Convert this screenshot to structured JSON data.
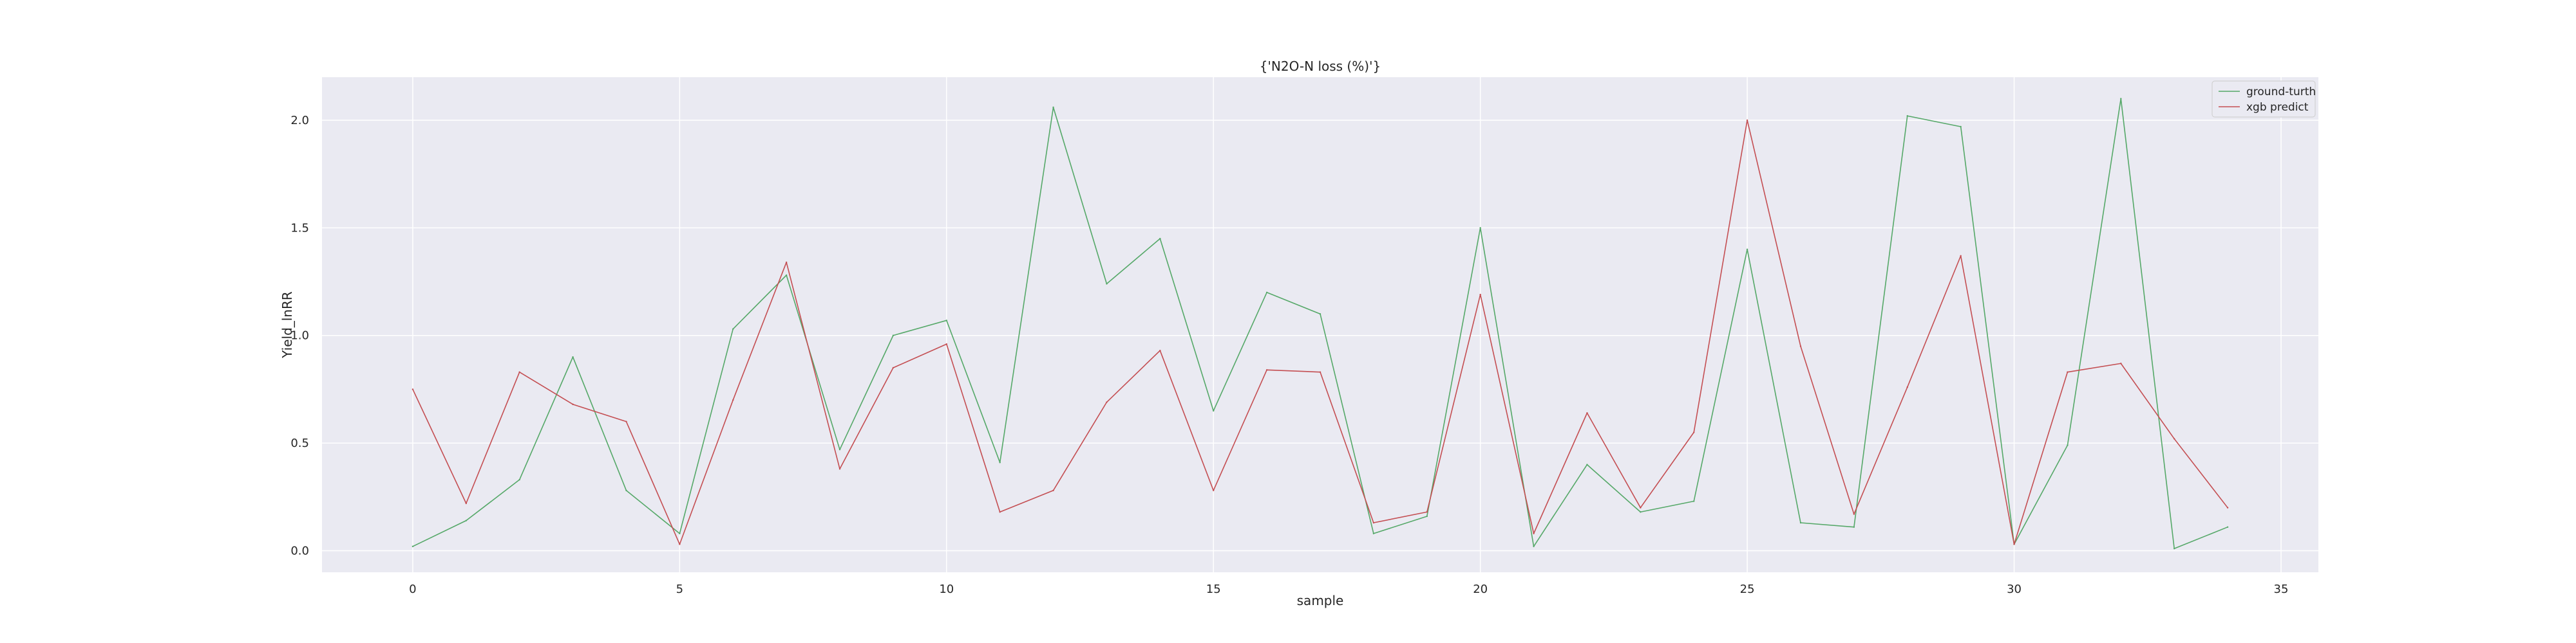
{
  "chart_data": {
    "type": "line",
    "title": "{'N2O-N loss (%)'}",
    "xlabel": "sample",
    "ylabel": "Yield_lnRR",
    "xlim": [
      -1.7,
      35.7
    ],
    "ylim": [
      -0.1,
      2.2
    ],
    "xticks": [
      0,
      5,
      10,
      15,
      20,
      25,
      30,
      35
    ],
    "xtick_labels": [
      "0",
      "5",
      "10",
      "15",
      "20",
      "25",
      "30",
      "35"
    ],
    "yticks": [
      0.0,
      0.5,
      1.0,
      1.5,
      2.0
    ],
    "ytick_labels": [
      "0.0",
      "0.5",
      "1.0",
      "1.5",
      "2.0"
    ],
    "grid": true,
    "legend_position": "top-right",
    "x": [
      0,
      1,
      2,
      3,
      4,
      5,
      6,
      7,
      8,
      9,
      10,
      11,
      12,
      13,
      14,
      15,
      16,
      17,
      18,
      19,
      20,
      21,
      22,
      23,
      24,
      25,
      26,
      27,
      28,
      29,
      30,
      31,
      32,
      33,
      34
    ],
    "series": [
      {
        "name": "ground-turth",
        "color": "#55a868",
        "values": [
          0.02,
          0.14,
          0.33,
          0.9,
          0.28,
          0.08,
          1.03,
          1.28,
          0.47,
          1.0,
          1.07,
          0.41,
          2.06,
          1.24,
          1.45,
          0.65,
          1.2,
          1.1,
          0.08,
          0.16,
          1.5,
          0.02,
          0.4,
          0.18,
          0.23,
          1.4,
          0.13,
          0.11,
          2.02,
          1.97,
          0.03,
          0.49,
          2.1,
          0.01,
          0.11
        ]
      },
      {
        "name": "xgb predict",
        "color": "#c44e52",
        "values": [
          0.75,
          0.22,
          0.83,
          0.68,
          0.6,
          0.03,
          0.7,
          1.34,
          0.38,
          0.85,
          0.96,
          0.18,
          0.28,
          0.69,
          0.93,
          0.28,
          0.84,
          0.83,
          0.13,
          0.18,
          1.19,
          0.08,
          0.64,
          0.2,
          0.55,
          2.0,
          0.95,
          0.17,
          0.76,
          1.37,
          0.03,
          0.83,
          0.87,
          0.52,
          0.2
        ]
      }
    ]
  }
}
